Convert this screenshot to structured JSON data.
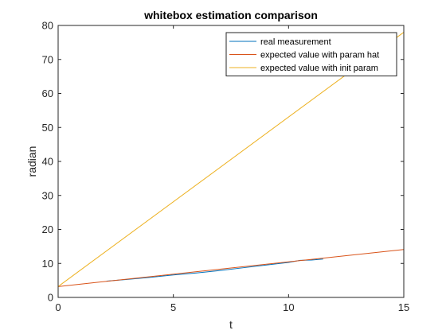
{
  "chart_data": {
    "type": "line",
    "title": "whitebox estimation comparison",
    "xlabel": "t",
    "ylabel": "radian",
    "xlim": [
      0,
      15
    ],
    "ylim": [
      0,
      80
    ],
    "xticks": [
      0,
      5,
      10,
      15
    ],
    "yticks": [
      0,
      10,
      20,
      30,
      40,
      50,
      60,
      70,
      80
    ],
    "grid": false,
    "legend_position": "top-right",
    "series": [
      {
        "name": "real measurement",
        "color": "#0072BD",
        "x": [
          2.1,
          3,
          4,
          5,
          6,
          7,
          8,
          9,
          10,
          10.5,
          11,
          11.5
        ],
        "y": [
          4.8,
          5.3,
          5.9,
          6.6,
          7.2,
          7.9,
          8.7,
          9.5,
          10.3,
          10.9,
          11.0,
          11.3
        ]
      },
      {
        "name": "expected value with param hat",
        "color": "#D95319",
        "x": [
          0,
          15
        ],
        "y": [
          3.2,
          14.1
        ]
      },
      {
        "name": "expected value with init param",
        "color": "#EDB120",
        "x": [
          0,
          15
        ],
        "y": [
          3.2,
          78.0
        ]
      }
    ]
  }
}
